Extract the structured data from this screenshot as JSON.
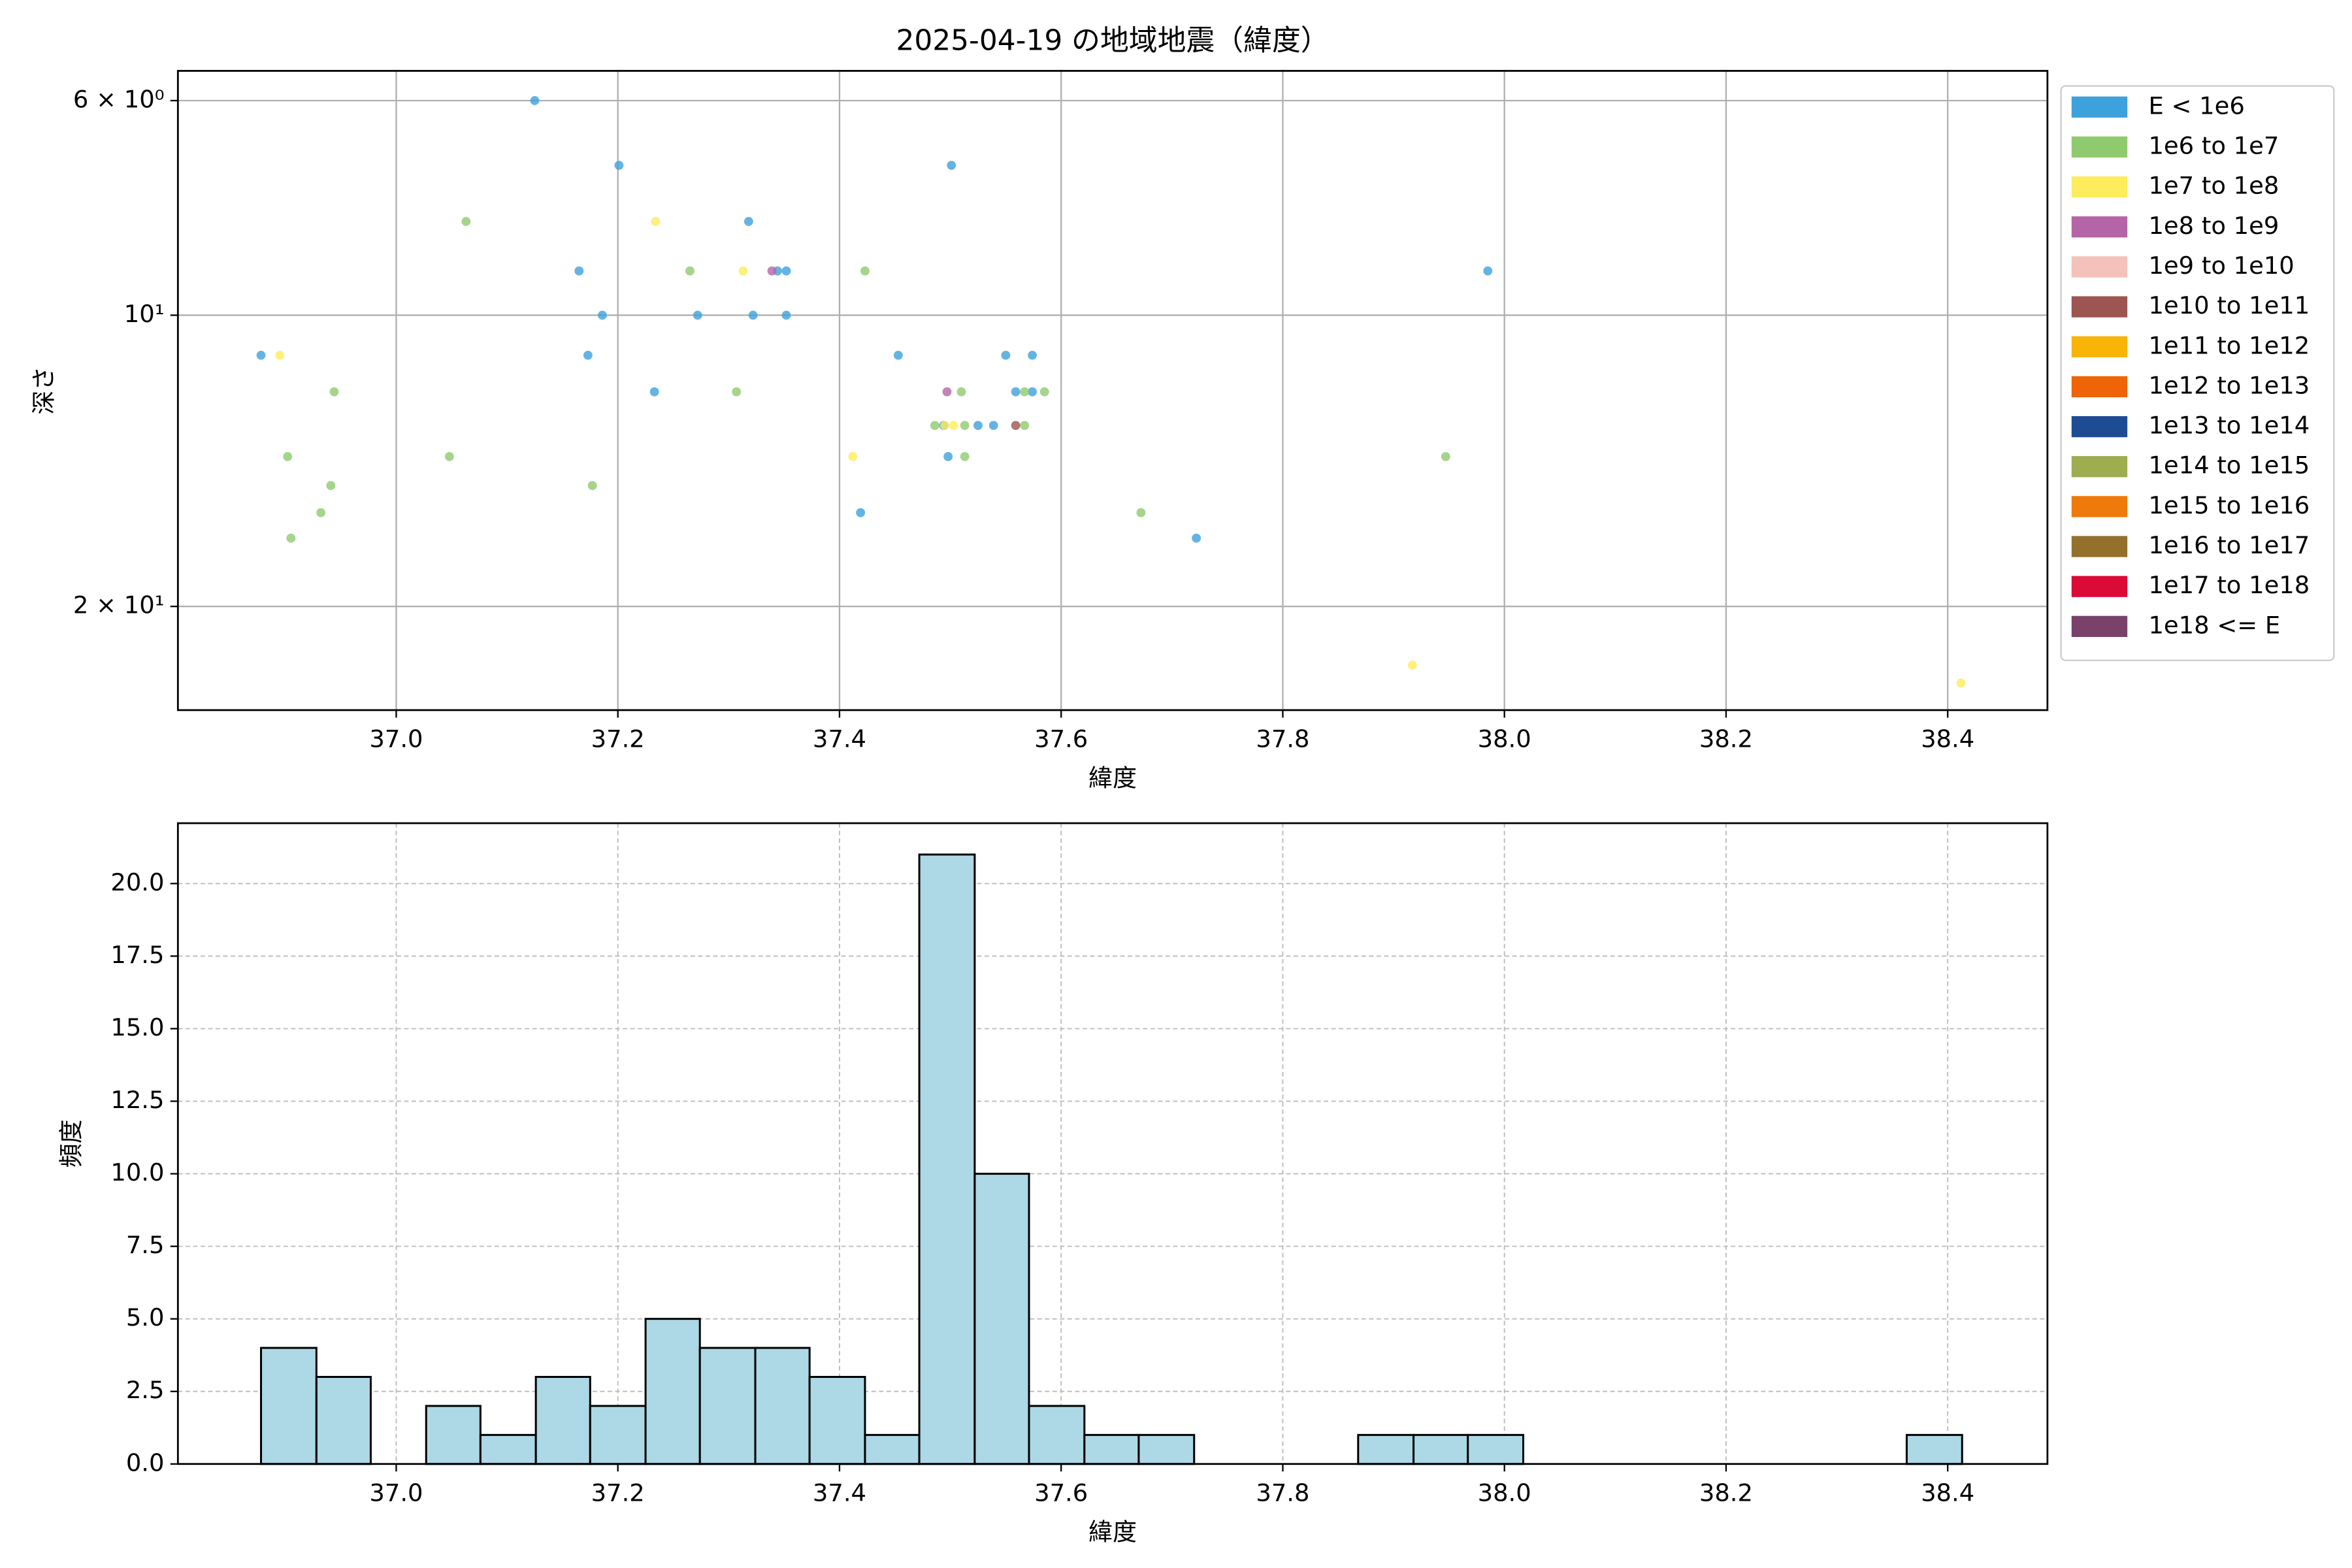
{
  "chart_data": [
    {
      "type": "scatter",
      "title": "2025-04-19 の地域地震（緯度）",
      "xlabel": "緯度",
      "ylabel": "深さ",
      "xlim": [
        36.803,
        38.49
      ],
      "ylim": [
        25.6,
        5.59
      ],
      "log_y": true,
      "grid": true,
      "legend": "outside upper right",
      "xticks": [
        {
          "value": 37,
          "label": "37.0"
        },
        37.2,
        37.4,
        37.6,
        37.8,
        {
          "value": 38,
          "label": "38.0"
        },
        38.2,
        38.4
      ],
      "yticks": [
        {
          "value": 6,
          "label": "6 × 10⁰"
        },
        {
          "value": 10,
          "label": "10¹"
        },
        {
          "value": 20,
          "label": "2 × 10¹"
        }
      ],
      "series": [
        {
          "name": "E < 1e6",
          "color": "#3da1dc",
          "x": [
            36.878,
            37.125,
            37.201,
            37.501,
            37.318,
            37.165,
            37.344,
            37.352,
            37.186,
            37.272,
            37.322,
            37.352,
            37.173,
            37.453,
            37.55,
            37.574,
            37.233,
            37.559,
            37.574,
            37.525,
            37.539,
            37.498,
            37.419,
            37.722,
            37.985,
            37.494
          ],
          "values": [
            11,
            6,
            7,
            7,
            8,
            9,
            9,
            9,
            10,
            10,
            10,
            10,
            11,
            11,
            11,
            11,
            12,
            12,
            12,
            13,
            13,
            14,
            16,
            17,
            9,
            13
          ]
        },
        {
          "name": "1e6 to 1e7",
          "color": "#8fcb6e",
          "x": [
            37.063,
            37.265,
            37.423,
            36.944,
            37.307,
            37.51,
            37.585,
            37.567,
            37.486,
            37.513,
            37.567,
            36.902,
            37.048,
            37.513,
            37.947,
            36.941,
            37.177,
            36.932,
            37.672,
            36.905
          ],
          "values": [
            8,
            9,
            9,
            12,
            12,
            12,
            12,
            12,
            13,
            13,
            13,
            14,
            14,
            14,
            14,
            15,
            15,
            16,
            16,
            17
          ]
        },
        {
          "name": "1e7 to 1e8",
          "color": "#fdec5c",
          "x": [
            36.895,
            37.234,
            37.313,
            37.412,
            37.495,
            37.503,
            37.917,
            38.412
          ],
          "values": [
            11,
            8,
            9,
            14,
            13,
            13,
            23,
            24
          ]
        },
        {
          "name": "1e8 to 1e9",
          "color": "#b565a7",
          "x": [
            37.339,
            37.497
          ],
          "values": [
            9,
            12
          ]
        },
        {
          "name": "1e9 to 1e10",
          "color": "#f4c1bb",
          "x": [],
          "values": []
        },
        {
          "name": "1e10 to 1e11",
          "color": "#9c5550",
          "x": [
            37.559
          ],
          "values": [
            13
          ]
        },
        {
          "name": "1e11 to 1e12",
          "color": "#f8b407",
          "x": [],
          "values": []
        },
        {
          "name": "1e12 to 1e13",
          "color": "#ef6407",
          "x": [],
          "values": []
        },
        {
          "name": "1e13 to 1e14",
          "color": "#1e4c94",
          "x": [],
          "values": []
        },
        {
          "name": "1e14 to 1e15",
          "color": "#9dad4f",
          "x": [],
          "values": []
        },
        {
          "name": "1e15 to 1e16",
          "color": "#ee7a0b",
          "x": [],
          "values": []
        },
        {
          "name": "1e16 to 1e17",
          "color": "#95702c",
          "x": [],
          "values": []
        },
        {
          "name": "1e17 to 1e18",
          "color": "#dc0a37",
          "x": [],
          "values": []
        },
        {
          "name": "1e18 <= E",
          "color": "#7a416b",
          "x": [],
          "values": []
        }
      ]
    },
    {
      "type": "histogram",
      "xlabel": "緯度",
      "ylabel": "頻度",
      "color": "#add8e6",
      "edgecolor": "#000000",
      "grid": "dashed",
      "xlim": [
        36.803,
        38.49
      ],
      "ylim": [
        0,
        22.08
      ],
      "xticks": [
        {
          "value": 37,
          "label": "37.0"
        },
        37.2,
        37.4,
        37.6,
        37.8,
        {
          "value": 38,
          "label": "38.0"
        },
        38.2,
        38.4
      ],
      "yticks": [
        {
          "value": 0,
          "label": "0.0"
        },
        2.5,
        {
          "value": 5,
          "label": "5.0"
        },
        7.5,
        {
          "value": 10,
          "label": "10.0"
        },
        12.5,
        {
          "value": 15,
          "label": "15.0"
        },
        17.5,
        {
          "value": 20,
          "label": "20.0"
        }
      ],
      "bins": [
        36.878,
        36.928,
        36.977,
        37.027,
        37.076,
        37.126,
        37.175,
        37.225,
        37.274,
        37.324,
        37.373,
        37.423,
        37.472,
        37.522,
        37.571,
        37.621,
        37.67,
        37.72,
        37.769,
        37.819,
        37.868,
        37.918,
        37.967,
        38.017,
        38.066,
        38.116,
        38.165,
        38.215,
        38.264,
        38.314,
        38.363,
        38.413
      ],
      "counts": [
        4,
        3,
        0,
        2,
        1,
        3,
        2,
        5,
        4,
        4,
        3,
        1,
        21,
        10,
        2,
        1,
        1,
        0,
        0,
        0,
        1,
        1,
        1,
        0,
        0,
        0,
        0,
        0,
        0,
        0,
        1
      ]
    }
  ]
}
